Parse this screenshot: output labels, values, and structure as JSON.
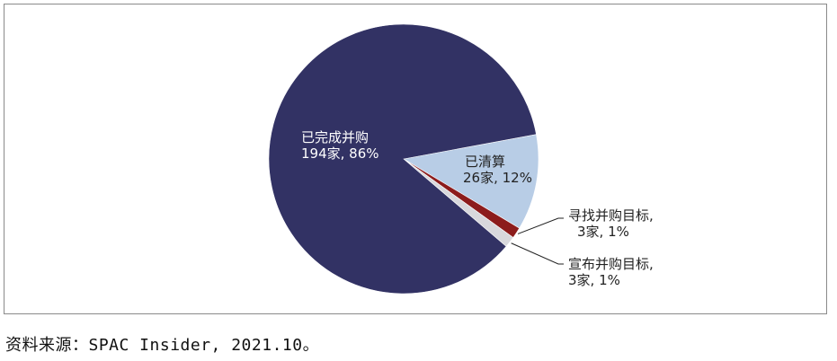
{
  "chart_data": {
    "type": "pie",
    "title": "",
    "slices": [
      {
        "label": "已完成并购",
        "count_text": "194家, 86%",
        "count": 194,
        "percent": 86,
        "color": "#323264",
        "text_color": "#ffffff"
      },
      {
        "label": "已清算",
        "count_text": "26家, 12%",
        "count": 26,
        "percent": 12,
        "color": "#b8cde6",
        "text_color": "#222222"
      },
      {
        "label": "寻找并购目标,",
        "count_text": "3家, 1%",
        "count": 3,
        "percent": 1,
        "color": "#8c1c1c",
        "text_color": "#222222"
      },
      {
        "label": "宣布并购目标,",
        "count_text": "3家, 1%",
        "count": 3,
        "percent": 1,
        "color": "#d8d8dc",
        "text_color": "#222222"
      }
    ],
    "legend": "none"
  },
  "source_note": "资料来源：SPAC Insider, 2021.10。"
}
